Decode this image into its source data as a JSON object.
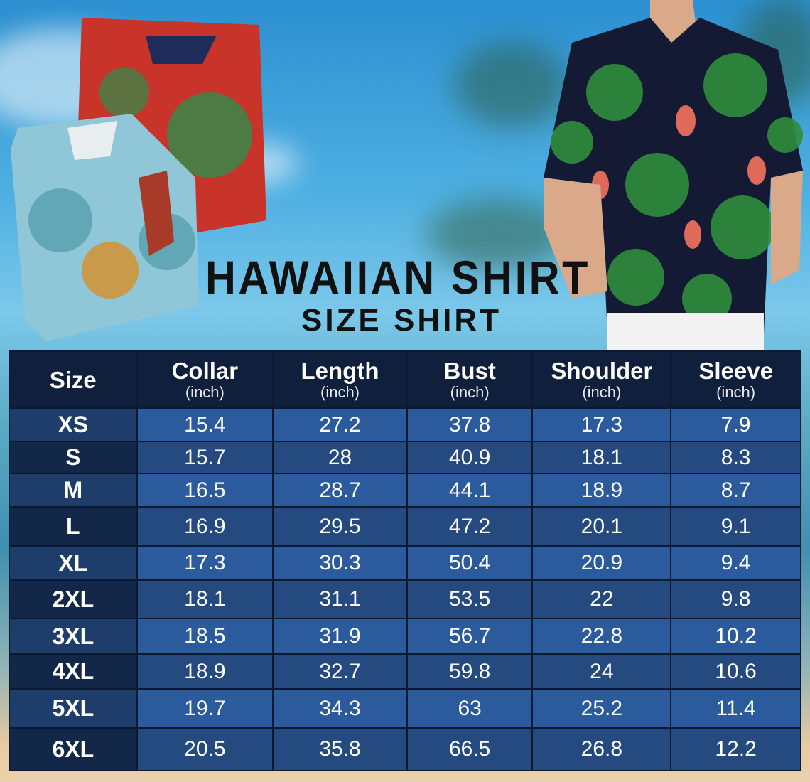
{
  "title": "HAWAIIAN SHIRT",
  "subtitle": "SIZE SHIRT",
  "colors": {
    "header_bg": "#0f1f3c",
    "row_light": "#2b5b9c",
    "row_dark": "#244a80",
    "title": "#111111"
  },
  "table": {
    "headers": [
      {
        "label": "Size",
        "unit": ""
      },
      {
        "label": "Collar",
        "unit": "(inch)"
      },
      {
        "label": "Length",
        "unit": "(inch)"
      },
      {
        "label": "Bust",
        "unit": "(inch)"
      },
      {
        "label": "Shoulder",
        "unit": "(inch)"
      },
      {
        "label": "Sleeve",
        "unit": "(inch)"
      }
    ],
    "rows": [
      [
        "XS",
        "15.4",
        "27.2",
        "37.8",
        "17.3",
        "7.9"
      ],
      [
        "S",
        "15.7",
        "28",
        "40.9",
        "18.1",
        "8.3"
      ],
      [
        "M",
        "16.5",
        "28.7",
        "44.1",
        "18.9",
        "8.7"
      ],
      [
        "L",
        "16.9",
        "29.5",
        "47.2",
        "20.1",
        "9.1"
      ],
      [
        "XL",
        "17.3",
        "30.3",
        "50.4",
        "20.9",
        "9.4"
      ],
      [
        "2XL",
        "18.1",
        "31.1",
        "53.5",
        "22",
        "9.8"
      ],
      [
        "3XL",
        "18.5",
        "31.9",
        "56.7",
        "22.8",
        "10.2"
      ],
      [
        "4XL",
        "18.9",
        "32.7",
        "59.8",
        "24",
        "10.6"
      ],
      [
        "5XL",
        "19.7",
        "34.3",
        "63",
        "25.2",
        "11.4"
      ],
      [
        "6XL",
        "20.5",
        "35.8",
        "66.5",
        "26.8",
        "12.2"
      ]
    ]
  }
}
